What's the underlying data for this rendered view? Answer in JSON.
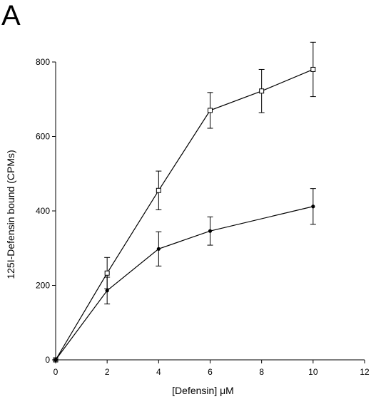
{
  "panel_label": "A",
  "chart_data": {
    "type": "line",
    "title": "",
    "xlabel": "[Defensin]   μM",
    "ylabel": "125I-Defensin   bound   (CPMs)",
    "xlim": [
      0,
      12
    ],
    "ylim": [
      0,
      800
    ],
    "xticks": [
      0,
      2,
      4,
      6,
      8,
      10,
      12
    ],
    "yticks": [
      0,
      200,
      400,
      600,
      800
    ],
    "grid": false,
    "legend": "none",
    "series": [
      {
        "marker": "open-square",
        "x": [
          0,
          2,
          4,
          6,
          8,
          10
        ],
        "y": [
          0,
          233,
          455,
          670,
          722,
          780
        ],
        "error": [
          0,
          42,
          52,
          48,
          58,
          73
        ],
        "color": "#000000"
      },
      {
        "marker": "filled-circle",
        "x": [
          0,
          2,
          4,
          6,
          10
        ],
        "y": [
          0,
          186,
          298,
          346,
          412
        ],
        "error": [
          0,
          36,
          46,
          38,
          48
        ],
        "color": "#000000"
      }
    ]
  }
}
